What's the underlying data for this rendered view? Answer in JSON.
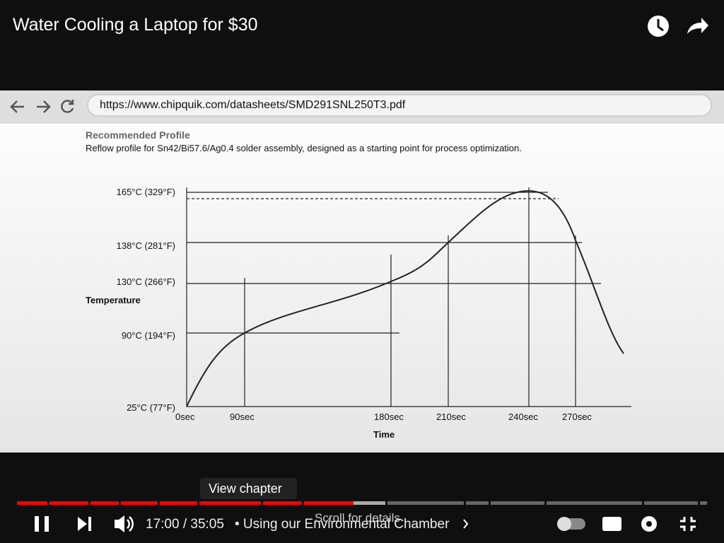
{
  "video": {
    "title": "Water Cooling a Laptop for $30",
    "time": "17:00 / 35:05",
    "chapter": "• Using our Environmental Chamber",
    "tooltip": "View chapter",
    "hint": "Scroll for details"
  },
  "browser": {
    "url": "https://www.chipquik.com/datasheets/SMD291SNL250T3.pdf"
  },
  "document": {
    "heading": "Recommended Profile",
    "description": "Reflow profile for Sn42/Bi57.6/Ag0.4 solder assembly, designed as a starting point for process optimization.",
    "y_axis_label": "Temperature",
    "x_axis_label": "Time",
    "y_labels": [
      "165°C (329°F)",
      "138°C (281°F)",
      "130°C (266°F)",
      "90°C (194°F)",
      "25°C (77°F)"
    ],
    "x_labels": [
      "0sec",
      "90sec",
      "180sec",
      "210sec",
      "240sec",
      "270sec"
    ]
  }
}
